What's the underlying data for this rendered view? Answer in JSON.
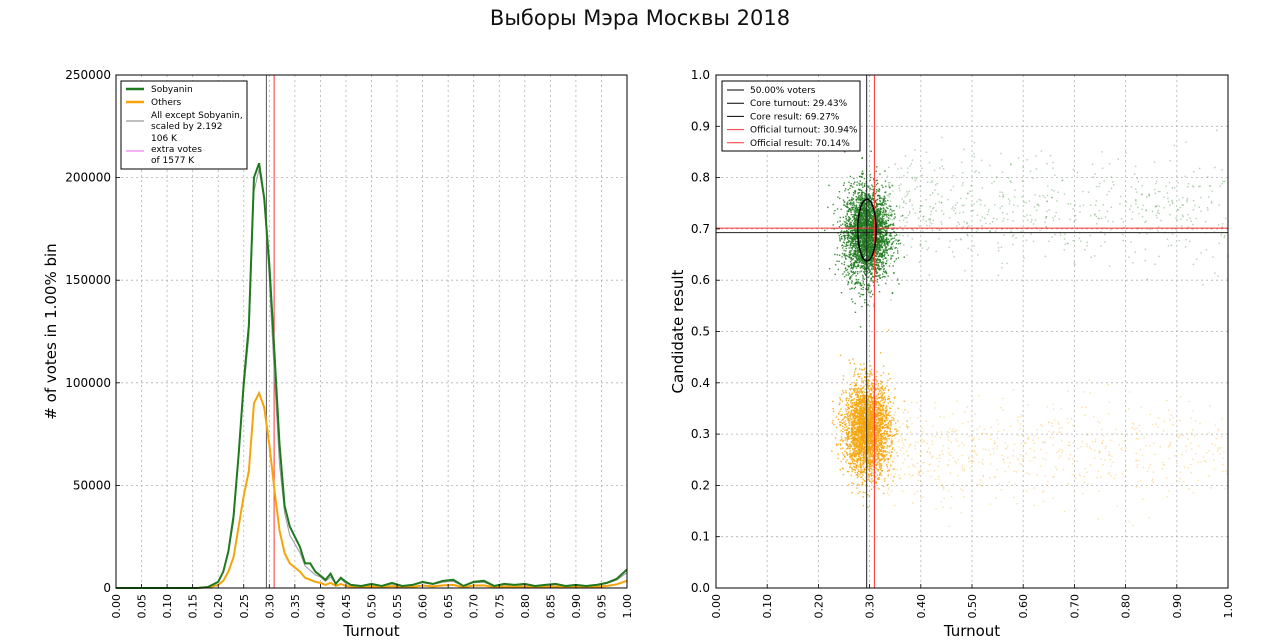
{
  "title": "Выборы Мэра Москвы 2018",
  "colors": {
    "sobyanin": "#1f7a1f",
    "others": "#f5a50a",
    "rescaled": "#999999",
    "extra": "#ee82ee",
    "core_line": "#555555",
    "official_line": "#ff3333"
  },
  "chart_data": [
    {
      "type": "line",
      "xlabel": "Turnout",
      "ylabel": "# of votes in 1.00% bin",
      "xlim": [
        0,
        1
      ],
      "ylim": [
        0,
        250000
      ],
      "xticks": [
        "0.00",
        "0.05",
        "0.10",
        "0.15",
        "0.20",
        "0.25",
        "0.30",
        "0.35",
        "0.40",
        "0.45",
        "0.50",
        "0.55",
        "0.60",
        "0.65",
        "0.70",
        "0.75",
        "0.80",
        "0.85",
        "0.90",
        "0.95",
        "1.00"
      ],
      "yticks": [
        "0",
        "50000",
        "100000",
        "150000",
        "200000",
        "250000"
      ],
      "grid": true,
      "legend_position": "top-left",
      "legend": {
        "sobyanin": "Sobyanin",
        "others": "Others",
        "rescaled_1": "All except Sobyanin,",
        "rescaled_2": "scaled by 2.192",
        "extra_0": "106 K",
        "extra_1": "extra votes",
        "extra_2": "of 1577 K"
      },
      "vlines": {
        "core_turnout": 0.2943,
        "official_turnout": 0.3094
      },
      "series": [
        {
          "name": "Sobyanin",
          "x": [
            0.0,
            0.16,
            0.18,
            0.2,
            0.21,
            0.22,
            0.23,
            0.24,
            0.25,
            0.26,
            0.27,
            0.28,
            0.29,
            0.3,
            0.31,
            0.32,
            0.33,
            0.34,
            0.35,
            0.36,
            0.37,
            0.38,
            0.39,
            0.4,
            0.41,
            0.42,
            0.43,
            0.44,
            0.45,
            0.46,
            0.48,
            0.5,
            0.52,
            0.54,
            0.56,
            0.58,
            0.6,
            0.62,
            0.64,
            0.66,
            0.68,
            0.7,
            0.72,
            0.74,
            0.76,
            0.78,
            0.8,
            0.82,
            0.84,
            0.86,
            0.88,
            0.9,
            0.92,
            0.94,
            0.96,
            0.98,
            1.0
          ],
          "y": [
            0,
            0,
            500,
            3000,
            8000,
            18000,
            35000,
            65000,
            100000,
            128000,
            200000,
            207000,
            190000,
            158000,
            115000,
            70000,
            40000,
            30000,
            25000,
            20000,
            12000,
            12000,
            8000,
            6000,
            4000,
            7000,
            2000,
            5000,
            3000,
            1500,
            1000,
            2000,
            1000,
            2500,
            1000,
            1500,
            3000,
            2000,
            3500,
            4000,
            1000,
            3000,
            3500,
            1000,
            2000,
            1500,
            2000,
            1000,
            1500,
            2000,
            1000,
            1500,
            1000,
            1500,
            2500,
            4500,
            9000
          ]
        },
        {
          "name": "Others",
          "x": [
            0.0,
            0.16,
            0.18,
            0.2,
            0.21,
            0.22,
            0.23,
            0.24,
            0.25,
            0.26,
            0.27,
            0.28,
            0.29,
            0.3,
            0.31,
            0.32,
            0.33,
            0.34,
            0.35,
            0.36,
            0.37,
            0.38,
            0.39,
            0.4,
            0.41,
            0.42,
            0.43,
            0.44,
            0.45,
            0.46,
            0.48,
            0.5,
            0.52,
            0.54,
            0.56,
            0.58,
            0.6,
            0.62,
            0.64,
            0.66,
            0.68,
            0.7,
            0.72,
            0.74,
            0.76,
            0.78,
            0.8,
            0.82,
            0.84,
            0.86,
            0.88,
            0.9,
            0.92,
            0.94,
            0.96,
            0.98,
            1.0
          ],
          "y": [
            0,
            0,
            300,
            1500,
            3500,
            8000,
            15000,
            30000,
            45000,
            57000,
            90000,
            95000,
            88000,
            70000,
            48000,
            28000,
            17000,
            12000,
            10000,
            8000,
            5000,
            4000,
            3000,
            2500,
            1500,
            2500,
            1000,
            2000,
            1000,
            700,
            500,
            800,
            400,
            900,
            400,
            600,
            1200,
            800,
            1300,
            1500,
            400,
            1200,
            1300,
            400,
            800,
            600,
            800,
            400,
            600,
            800,
            400,
            600,
            400,
            600,
            1000,
            1800,
            3500
          ]
        }
      ]
    },
    {
      "type": "scatter",
      "xlabel": "Turnout",
      "ylabel": "Candidate result",
      "xlim": [
        0,
        1
      ],
      "ylim": [
        0,
        1
      ],
      "xticks": [
        "0.00",
        "0.10",
        "0.20",
        "0.30",
        "0.40",
        "0.50",
        "0.60",
        "0.70",
        "0.80",
        "0.90",
        "1.00"
      ],
      "yticks": [
        "0.0",
        "0.1",
        "0.2",
        "0.3",
        "0.4",
        "0.5",
        "0.6",
        "0.7",
        "0.8",
        "0.9",
        "1.0"
      ],
      "grid": true,
      "legend_position": "top-left",
      "legend": {
        "voters": "50.00% voters",
        "core_turnout": "Core turnout: 29.43%",
        "core_result": "Core result: 69.27%",
        "official_turnout": "Official turnout: 30.94%",
        "official_result": "Official result: 70.14%"
      },
      "core": {
        "turnout": 0.2943,
        "result": 0.6927,
        "sd_turnout": 0.018,
        "sd_result": 0.06
      },
      "official": {
        "turnout": 0.3094,
        "result": 0.7014
      },
      "clusters": [
        {
          "name": "Sobyanin",
          "center_x": 0.295,
          "center_y": 0.69,
          "sd_x": 0.022,
          "sd_y": 0.045,
          "tail_to_x": 1.0,
          "count": 3600
        },
        {
          "name": "Others",
          "center_x": 0.295,
          "center_y": 0.31,
          "sd_x": 0.022,
          "sd_y": 0.045,
          "tail_to_x": 1.0,
          "count": 3600
        }
      ]
    }
  ]
}
